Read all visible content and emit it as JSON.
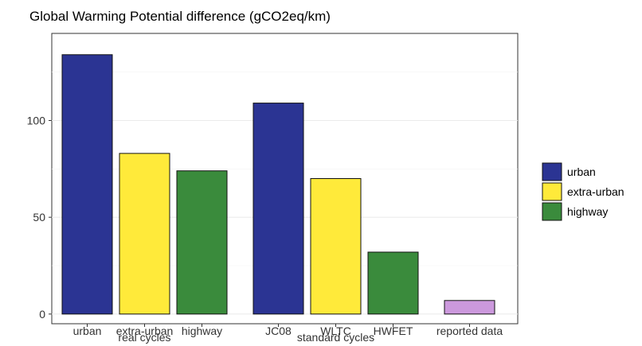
{
  "chart_data": {
    "type": "bar",
    "title": "Global Warming Potential difference (gCO2eq/km)",
    "xlabel": "",
    "ylabel": "",
    "ylim": [
      -5,
      145
    ],
    "yticks": [
      0,
      50,
      100
    ],
    "grid": true,
    "legend_position": "right",
    "colors": {
      "urban": "#2B3493",
      "extra-urban": "#FFEA3A",
      "highway": "#3A8B3C",
      "reported data": "#CC99DD"
    },
    "categories": [
      "urban",
      "extra-urban",
      "highway",
      "JC08",
      "WLTC",
      "HWFET",
      "reported data"
    ],
    "groups": [
      {
        "label": "real cycles",
        "bars": [
          {
            "category": "urban",
            "value": 134,
            "series": "urban"
          },
          {
            "category": "extra-urban",
            "value": 83,
            "series": "extra-urban"
          },
          {
            "category": "highway",
            "value": 74,
            "series": "highway"
          }
        ]
      },
      {
        "label": "standard cycles",
        "bars": [
          {
            "category": "JC08",
            "value": 109,
            "series": "urban"
          },
          {
            "category": "WLTC",
            "value": 70,
            "series": "extra-urban"
          },
          {
            "category": "HWFET",
            "value": 32,
            "series": "highway"
          }
        ]
      },
      {
        "label": "",
        "bars": [
          {
            "category": "reported data",
            "value": 7,
            "series": "reported data"
          }
        ]
      }
    ],
    "legend": [
      "urban",
      "extra-urban",
      "highway"
    ]
  }
}
